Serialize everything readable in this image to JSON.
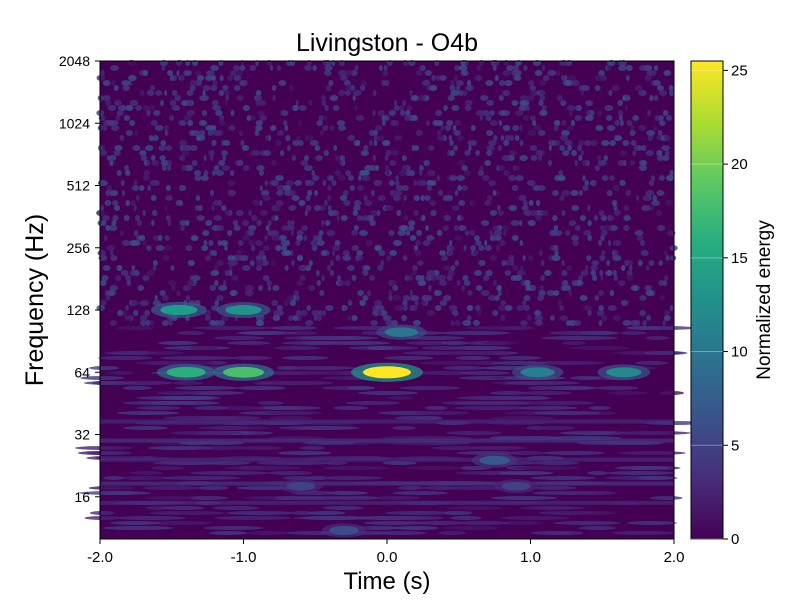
{
  "chart_data": {
    "type": "heatmap",
    "title": "Livingston - O4b",
    "xlabel": "Time (s)",
    "ylabel": "Frequency (Hz)",
    "xlim": [
      -2.0,
      2.0
    ],
    "ylim": [
      10,
      2048
    ],
    "yscale": "log2",
    "xticks": [
      -2.0,
      -1.0,
      0.0,
      1.0,
      2.0
    ],
    "xtick_labels": [
      "-2.0",
      "-1.0",
      "0.0",
      "1.0",
      "2.0"
    ],
    "yticks": [
      16,
      32,
      64,
      128,
      256,
      512,
      1024,
      2048
    ],
    "ytick_labels": [
      "16",
      "32",
      "64",
      "128",
      "256",
      "512",
      "1024",
      "2048"
    ],
    "colormap": "viridis",
    "colorbar": {
      "label": "Normalized energy",
      "range": [
        0,
        25.5
      ],
      "ticks": [
        0,
        5,
        10,
        15,
        20,
        25
      ],
      "tick_labels": [
        "0",
        "5",
        "10",
        "15",
        "20",
        "25"
      ]
    },
    "grid": false,
    "features": [
      {
        "t": 0.0,
        "f": 64,
        "energy": 25.5
      },
      {
        "t": -1.0,
        "f": 64,
        "energy": 18
      },
      {
        "t": -1.4,
        "f": 64,
        "energy": 16
      },
      {
        "t": -1.45,
        "f": 128,
        "energy": 14
      },
      {
        "t": -1.0,
        "f": 128,
        "energy": 13
      },
      {
        "t": 0.1,
        "f": 100,
        "energy": 10
      },
      {
        "t": 1.05,
        "f": 64,
        "energy": 11
      },
      {
        "t": 1.65,
        "f": 64,
        "energy": 12
      },
      {
        "t": 0.75,
        "f": 24,
        "energy": 7
      },
      {
        "t": -0.3,
        "f": 11,
        "energy": 6
      },
      {
        "t": -0.6,
        "f": 18,
        "energy": 5
      },
      {
        "t": 0.9,
        "f": 18,
        "energy": 5
      }
    ]
  }
}
